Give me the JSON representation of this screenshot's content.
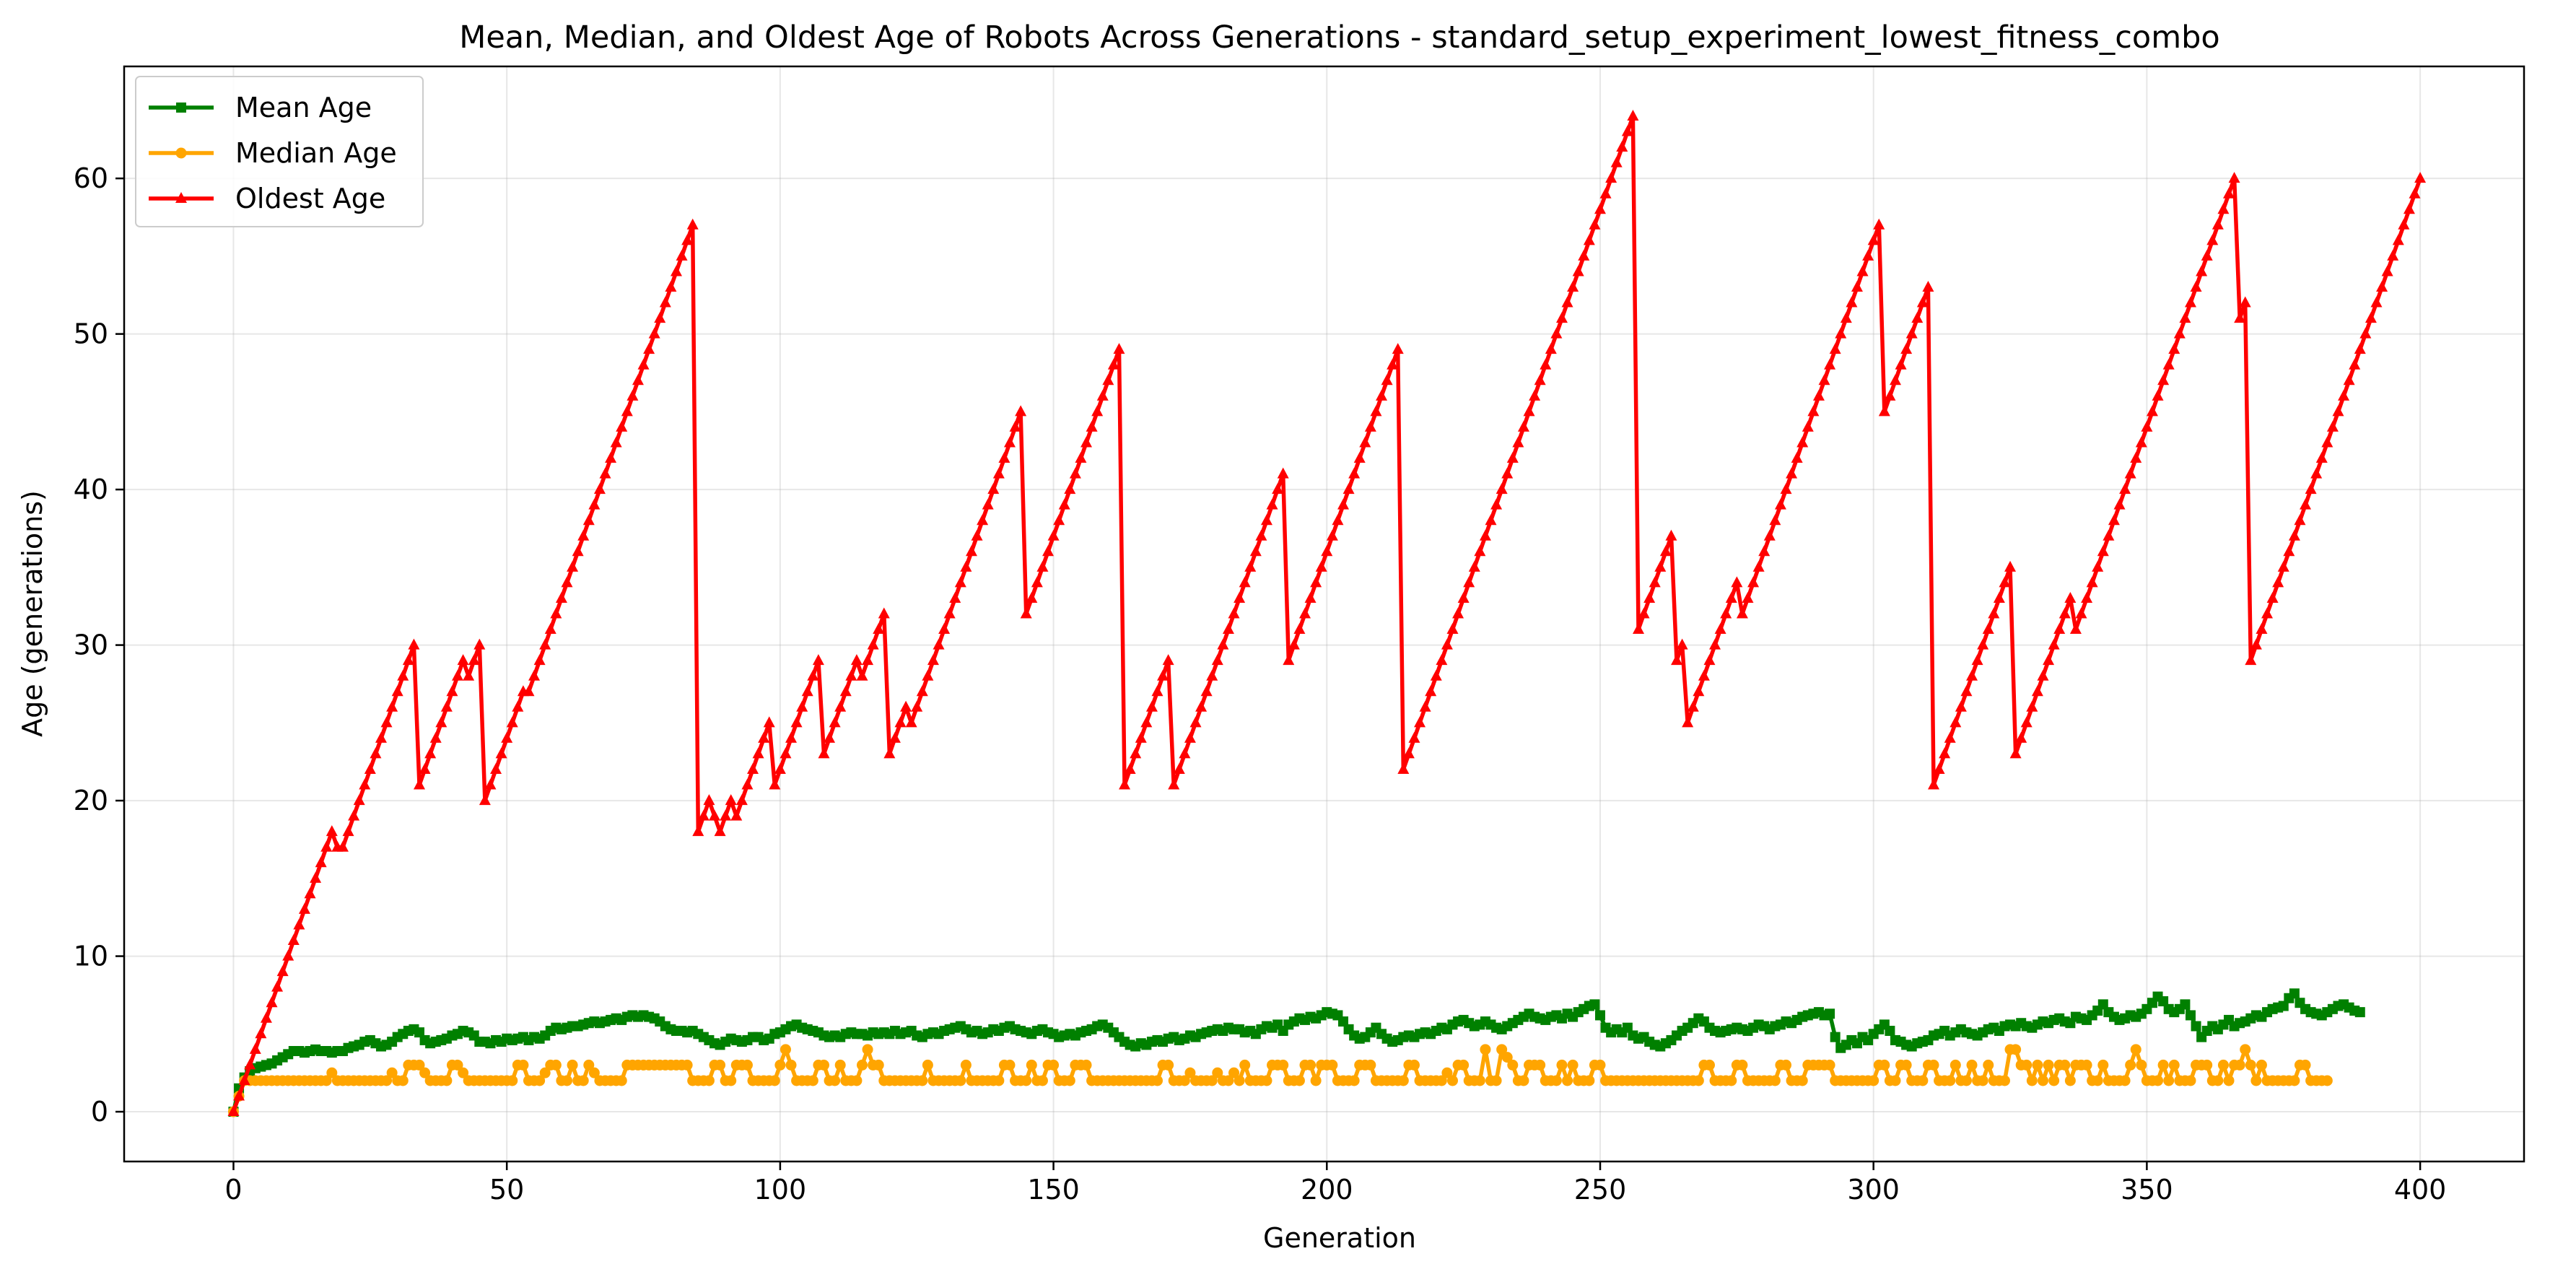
{
  "chart_data": {
    "type": "line",
    "title": "Mean, Median, and Oldest Age of Robots Across Generations - standard_setup_experiment_lowest_fitness_combo",
    "xlabel": "Generation",
    "ylabel": "Age (generations)",
    "xlim": [
      -20,
      419
    ],
    "ylim": [
      -3.2,
      67.2
    ],
    "xticks": [
      0,
      50,
      100,
      150,
      200,
      250,
      300,
      350,
      400
    ],
    "yticks": [
      0,
      10,
      20,
      30,
      40,
      50,
      60
    ],
    "grid": true,
    "legend_position": "top-left",
    "x": {
      "start": 0,
      "end": 399,
      "step": 1
    },
    "series": [
      {
        "name": "Mean Age",
        "color": "#008000",
        "marker": "square",
        "values": [
          0.0,
          1.5,
          2.2,
          2.6,
          2.8,
          2.9,
          3.0,
          3.1,
          3.3,
          3.5,
          3.7,
          3.9,
          3.9,
          3.8,
          3.9,
          4.0,
          3.9,
          3.9,
          3.8,
          3.9,
          3.9,
          4.1,
          4.2,
          4.3,
          4.5,
          4.6,
          4.4,
          4.2,
          4.3,
          4.5,
          4.8,
          5.0,
          5.2,
          5.3,
          5.1,
          4.6,
          4.4,
          4.5,
          4.6,
          4.7,
          4.9,
          5.0,
          5.2,
          5.1,
          4.9,
          4.5,
          4.5,
          4.4,
          4.6,
          4.5,
          4.7,
          4.6,
          4.7,
          4.8,
          4.6,
          4.8,
          4.7,
          4.9,
          5.2,
          5.4,
          5.3,
          5.4,
          5.5,
          5.5,
          5.6,
          5.7,
          5.8,
          5.7,
          5.8,
          5.9,
          6.0,
          5.9,
          6.1,
          6.2,
          6.1,
          6.2,
          6.1,
          6.0,
          5.8,
          5.5,
          5.3,
          5.2,
          5.2,
          5.1,
          5.2,
          5.0,
          4.8,
          4.6,
          4.4,
          4.3,
          4.5,
          4.7,
          4.6,
          4.5,
          4.6,
          4.8,
          4.8,
          4.6,
          4.7,
          5.0,
          5.1,
          5.3,
          5.5,
          5.6,
          5.4,
          5.3,
          5.2,
          5.1,
          4.9,
          4.8,
          4.9,
          4.8,
          5.0,
          5.1,
          5.0,
          5.0,
          4.9,
          5.1,
          5.0,
          5.1,
          5.0,
          5.2,
          5.0,
          5.1,
          5.2,
          4.9,
          4.8,
          5.0,
          5.1,
          5.0,
          5.2,
          5.3,
          5.4,
          5.5,
          5.3,
          5.1,
          5.2,
          5.0,
          5.1,
          5.3,
          5.2,
          5.4,
          5.5,
          5.3,
          5.2,
          5.1,
          5.0,
          5.2,
          5.3,
          5.1,
          5.0,
          4.8,
          4.9,
          5.0,
          4.9,
          5.1,
          5.2,
          5.3,
          5.5,
          5.6,
          5.4,
          5.1,
          4.8,
          4.5,
          4.3,
          4.2,
          4.4,
          4.3,
          4.5,
          4.6,
          4.5,
          4.7,
          4.8,
          4.6,
          4.7,
          4.9,
          4.8,
          5.0,
          5.1,
          5.2,
          5.3,
          5.2,
          5.4,
          5.3,
          5.3,
          5.1,
          5.2,
          5.0,
          5.3,
          5.5,
          5.4,
          5.6,
          5.2,
          5.6,
          5.8,
          6.0,
          5.9,
          6.1,
          6.0,
          6.2,
          6.4,
          6.3,
          6.2,
          5.8,
          5.3,
          4.9,
          4.7,
          4.8,
          5.1,
          5.4,
          5.0,
          4.7,
          4.5,
          4.6,
          4.8,
          4.9,
          4.8,
          5.0,
          5.1,
          5.0,
          5.2,
          5.4,
          5.3,
          5.6,
          5.8,
          5.9,
          5.7,
          5.5,
          5.6,
          5.8,
          5.6,
          5.4,
          5.3,
          5.5,
          5.7,
          5.9,
          6.1,
          6.3,
          6.1,
          6.0,
          5.9,
          6.1,
          6.2,
          6.0,
          6.3,
          6.1,
          6.4,
          6.6,
          6.8,
          6.9,
          6.2,
          5.4,
          5.1,
          5.3,
          5.1,
          5.4,
          4.9,
          4.7,
          4.8,
          4.5,
          4.3,
          4.2,
          4.4,
          4.6,
          4.9,
          5.2,
          5.4,
          5.7,
          6.0,
          5.8,
          5.4,
          5.2,
          5.1,
          5.2,
          5.3,
          5.4,
          5.3,
          5.2,
          5.4,
          5.6,
          5.5,
          5.3,
          5.5,
          5.6,
          5.8,
          5.7,
          5.9,
          6.1,
          6.2,
          6.3,
          6.4,
          6.2,
          6.3,
          4.8,
          4.1,
          4.3,
          4.6,
          4.4,
          4.8,
          4.6,
          5.0,
          5.3,
          5.6,
          5.2,
          4.6,
          4.5,
          4.3,
          4.2,
          4.4,
          4.5,
          4.6,
          4.9,
          5.0,
          5.2,
          4.9,
          5.1,
          5.3,
          5.1,
          5.0,
          4.9,
          5.1,
          5.3,
          5.4,
          5.2,
          5.5,
          5.6,
          5.5,
          5.7,
          5.5,
          5.4,
          5.6,
          5.8,
          5.7,
          5.9,
          6.0,
          5.8,
          5.7,
          6.1,
          6.0,
          5.9,
          6.2,
          6.5,
          6.9,
          6.4,
          6.1,
          5.9,
          6.0,
          6.2,
          6.1,
          6.3,
          6.6,
          7.0,
          7.4,
          7.1,
          6.6,
          6.4,
          6.6,
          6.9,
          6.2,
          5.5,
          4.8,
          5.2,
          5.5,
          5.3,
          5.6,
          5.9,
          5.5,
          5.7,
          5.8,
          6.0,
          6.2,
          6.1,
          6.4,
          6.6,
          6.7,
          6.8,
          7.3,
          7.6,
          7.0,
          6.6,
          6.4,
          6.3,
          6.2,
          6.4,
          6.6,
          6.8,
          6.9,
          6.7,
          6.5,
          6.4
        ]
      },
      {
        "name": "Median Age",
        "color": "#FFA500",
        "marker": "circle",
        "values": [
          0,
          1,
          2,
          2,
          2,
          2,
          2,
          2,
          2,
          2,
          2,
          2,
          2,
          2,
          2,
          2,
          2,
          2,
          2.5,
          2,
          2,
          2,
          2,
          2,
          2,
          2,
          2,
          2,
          2,
          2.5,
          2,
          2,
          3,
          3,
          3,
          2.5,
          2,
          2,
          2,
          2,
          3,
          3,
          2.5,
          2,
          2,
          2,
          2,
          2,
          2,
          2,
          2,
          2,
          3,
          3,
          2,
          2,
          2,
          2.5,
          3,
          3,
          2,
          2,
          3,
          2,
          2,
          3,
          2.5,
          2,
          2,
          2,
          2,
          2,
          3,
          3,
          3,
          3,
          3,
          3,
          3,
          3,
          3,
          3,
          3,
          3,
          2,
          2,
          2,
          2,
          3,
          3,
          2,
          2,
          3,
          3,
          3,
          2,
          2,
          2,
          2,
          2,
          3,
          4,
          3,
          2,
          2,
          2,
          2,
          3,
          3,
          2,
          2,
          3,
          2,
          2,
          2,
          3,
          4,
          3,
          3,
          2,
          2,
          2,
          2,
          2,
          2,
          2,
          2,
          3,
          2,
          2,
          2,
          2,
          2,
          2,
          3,
          2,
          2,
          2,
          2,
          2,
          2,
          3,
          3,
          2,
          2,
          2,
          3,
          2,
          2,
          3,
          3,
          2,
          2,
          2,
          3,
          3,
          3,
          2,
          2,
          2,
          2,
          2,
          2,
          2,
          2,
          2,
          2,
          2,
          2,
          2,
          3,
          3,
          2,
          2,
          2,
          2.5,
          2,
          2,
          2,
          2,
          2.5,
          2,
          2,
          2.5,
          2,
          3,
          2,
          2,
          2,
          2,
          3,
          3,
          3,
          2,
          2,
          2,
          3,
          3,
          2,
          3,
          3,
          3,
          2,
          2,
          2,
          2,
          3,
          3,
          3,
          2,
          2,
          2,
          2,
          2,
          2,
          3,
          3,
          2,
          2,
          2,
          2,
          2,
          2.5,
          2,
          3,
          3,
          2,
          2,
          2,
          4,
          2,
          2,
          4,
          3.5,
          3,
          2,
          2,
          3,
          3,
          3,
          2,
          2,
          2,
          3,
          2,
          3,
          2,
          2,
          2,
          3,
          3,
          2,
          2,
          2,
          2,
          2,
          2,
          2,
          2,
          2,
          2,
          2,
          2,
          2,
          2,
          2,
          2,
          2,
          2,
          3,
          3,
          2,
          2,
          2,
          2,
          3,
          3,
          2,
          2,
          2,
          2,
          2,
          2,
          3,
          3,
          2,
          2,
          2,
          3,
          3,
          3,
          3,
          3,
          2,
          2,
          2,
          2,
          2,
          2,
          2,
          2,
          3,
          3,
          2,
          2,
          3,
          3,
          2,
          2,
          2,
          3,
          3,
          2,
          2,
          2,
          3,
          2,
          2,
          3,
          2,
          2,
          3,
          2,
          2,
          2,
          4,
          4,
          3,
          3,
          2,
          3,
          2,
          3,
          2,
          3,
          3,
          2,
          3,
          3,
          3,
          2,
          2,
          3,
          2,
          2,
          2,
          2,
          3,
          4,
          3,
          2,
          2,
          2,
          3,
          2,
          3,
          2,
          2,
          2,
          3,
          3,
          3,
          2,
          2,
          3,
          2,
          3,
          3,
          4,
          3,
          2,
          3,
          2,
          2,
          2,
          2,
          2,
          2,
          3,
          3,
          2,
          2,
          2,
          2
        ]
      },
      {
        "name": "Oldest Age",
        "color": "#FF0000",
        "marker": "triangle",
        "values": [
          0,
          1,
          2,
          3,
          4,
          5,
          6,
          7,
          8,
          9,
          10,
          11,
          12,
          13,
          14,
          15,
          16,
          17,
          18,
          17,
          17,
          18,
          19,
          20,
          21,
          22,
          23,
          24,
          25,
          26,
          27,
          28,
          29,
          30,
          21,
          22,
          23,
          24,
          25,
          26,
          27,
          28,
          29,
          28,
          29,
          30,
          20,
          21,
          22,
          23,
          24,
          25,
          26,
          27,
          27,
          28,
          29,
          30,
          31,
          32,
          33,
          34,
          35,
          36,
          37,
          38,
          39,
          40,
          41,
          42,
          43,
          44,
          45,
          46,
          47,
          48,
          49,
          50,
          51,
          52,
          53,
          54,
          55,
          56,
          57,
          18,
          19,
          20,
          19,
          18,
          19,
          20,
          19,
          20,
          21,
          22,
          23,
          24,
          25,
          21,
          22,
          23,
          24,
          25,
          26,
          27,
          28,
          29,
          23,
          24,
          25,
          26,
          27,
          28,
          29,
          28,
          29,
          30,
          31,
          32,
          23,
          24,
          25,
          26,
          25,
          26,
          27,
          28,
          29,
          30,
          31,
          32,
          33,
          34,
          35,
          36,
          37,
          38,
          39,
          40,
          41,
          42,
          43,
          44,
          45,
          32,
          33,
          34,
          35,
          36,
          37,
          38,
          39,
          40,
          41,
          42,
          43,
          44,
          45,
          46,
          47,
          48,
          49,
          21,
          22,
          23,
          24,
          25,
          26,
          27,
          28,
          29,
          21,
          22,
          23,
          24,
          25,
          26,
          27,
          28,
          29,
          30,
          31,
          32,
          33,
          34,
          35,
          36,
          37,
          38,
          39,
          40,
          41,
          29,
          30,
          31,
          32,
          33,
          34,
          35,
          36,
          37,
          38,
          39,
          40,
          41,
          42,
          43,
          44,
          45,
          46,
          47,
          48,
          49,
          22,
          23,
          24,
          25,
          26,
          27,
          28,
          29,
          30,
          31,
          32,
          33,
          34,
          35,
          36,
          37,
          38,
          39,
          40,
          41,
          42,
          43,
          44,
          45,
          46,
          47,
          48,
          49,
          50,
          51,
          52,
          53,
          54,
          55,
          56,
          57,
          58,
          59,
          60,
          61,
          62,
          63,
          64,
          31,
          32,
          33,
          34,
          35,
          36,
          37,
          29,
          30,
          25,
          26,
          27,
          28,
          29,
          30,
          31,
          32,
          33,
          34,
          32,
          33,
          34,
          35,
          36,
          37,
          38,
          39,
          40,
          41,
          42,
          43,
          44,
          45,
          46,
          47,
          48,
          49,
          50,
          51,
          52,
          53,
          54,
          55,
          56,
          57,
          45,
          46,
          47,
          48,
          49,
          50,
          51,
          52,
          53,
          21,
          22,
          23,
          24,
          25,
          26,
          27,
          28,
          29,
          30,
          31,
          32,
          33,
          34,
          35,
          23,
          24,
          25,
          26,
          27,
          28,
          29,
          30,
          31,
          32,
          33,
          31,
          32,
          33,
          34,
          35,
          36,
          37,
          38,
          39,
          40,
          41,
          42,
          43,
          44,
          45,
          46,
          47,
          48,
          49,
          50,
          51,
          52,
          53,
          54,
          55,
          56,
          57,
          58,
          59,
          60,
          51,
          52,
          29,
          30,
          31,
          32,
          33,
          34,
          35,
          36,
          37,
          38,
          39,
          40,
          41,
          42,
          43,
          44,
          45,
          46,
          47,
          48,
          49,
          50,
          51,
          52,
          53,
          54,
          55,
          56,
          57,
          58,
          59,
          60
        ]
      }
    ]
  }
}
